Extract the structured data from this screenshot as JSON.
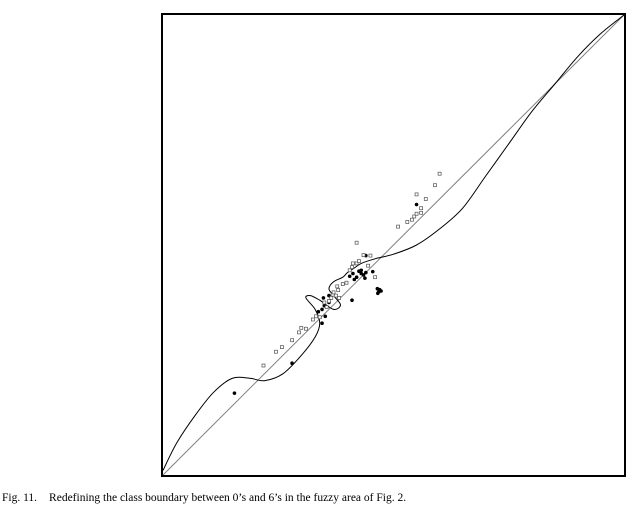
{
  "caption": {
    "label": "Fig. 11.",
    "text": "Redefining the class boundary between 0’s and 6’s in the fuzzy area of Fig. 2."
  },
  "chart_data": {
    "type": "scatter",
    "title": "",
    "xlabel": "",
    "ylabel": "",
    "xlim": [
      0,
      1
    ],
    "ylim": [
      0,
      1
    ],
    "grid": false,
    "legend": "none",
    "colors": {
      "frame": "#000000",
      "diagonal": "#808080",
      "boundary": "#000000",
      "filled_points": "#000000",
      "open_points": "#505050"
    },
    "series": [
      {
        "kind": "line",
        "values": [
          [
            0,
            0
          ],
          [
            1,
            1
          ]
        ]
      },
      {
        "kind": "curve",
        "values": [
          [
            0.0,
            0.01
          ],
          [
            0.03,
            0.07
          ],
          [
            0.07,
            0.13
          ],
          [
            0.11,
            0.18
          ],
          [
            0.15,
            0.21
          ],
          [
            0.19,
            0.21
          ],
          [
            0.22,
            0.205
          ],
          [
            0.26,
            0.22
          ],
          [
            0.3,
            0.26
          ],
          [
            0.33,
            0.3
          ],
          [
            0.34,
            0.33
          ],
          [
            0.33,
            0.36
          ],
          [
            0.31,
            0.385
          ],
          [
            0.32,
            0.39
          ],
          [
            0.34,
            0.38
          ],
          [
            0.37,
            0.36
          ],
          [
            0.385,
            0.37
          ],
          [
            0.37,
            0.39
          ],
          [
            0.36,
            0.405
          ],
          [
            0.37,
            0.42
          ],
          [
            0.39,
            0.43
          ],
          [
            0.4,
            0.44
          ],
          [
            0.415,
            0.45
          ],
          [
            0.43,
            0.46
          ],
          [
            0.46,
            0.47
          ],
          [
            0.5,
            0.48
          ],
          [
            0.55,
            0.5
          ],
          [
            0.6,
            0.535
          ],
          [
            0.65,
            0.58
          ],
          [
            0.7,
            0.65
          ],
          [
            0.75,
            0.72
          ],
          [
            0.8,
            0.79
          ],
          [
            0.85,
            0.85
          ],
          [
            0.9,
            0.91
          ],
          [
            0.95,
            0.96
          ],
          [
            1.0,
            1.0
          ]
        ]
      },
      {
        "kind": "filled",
        "values": [
          [
            0.155,
            0.178
          ],
          [
            0.28,
            0.243
          ],
          [
            0.345,
            0.33
          ],
          [
            0.352,
            0.345
          ],
          [
            0.337,
            0.355
          ],
          [
            0.345,
            0.36
          ],
          [
            0.35,
            0.368
          ],
          [
            0.36,
            0.375
          ],
          [
            0.36,
            0.39
          ],
          [
            0.348,
            0.385
          ],
          [
            0.41,
            0.38
          ],
          [
            0.415,
            0.425
          ],
          [
            0.405,
            0.432
          ],
          [
            0.412,
            0.438
          ],
          [
            0.42,
            0.43
          ],
          [
            0.43,
            0.438
          ],
          [
            0.435,
            0.435
          ],
          [
            0.44,
            0.44
          ],
          [
            0.438,
            0.428
          ],
          [
            0.43,
            0.445
          ],
          [
            0.425,
            0.443
          ],
          [
            0.455,
            0.442
          ],
          [
            0.465,
            0.405
          ],
          [
            0.468,
            0.398
          ],
          [
            0.466,
            0.395
          ],
          [
            0.47,
            0.403
          ],
          [
            0.473,
            0.4
          ],
          [
            0.44,
            0.477
          ],
          [
            0.55,
            0.588
          ]
        ]
      },
      {
        "kind": "open",
        "values": [
          [
            0.218,
            0.238
          ],
          [
            0.245,
            0.268
          ],
          [
            0.258,
            0.278
          ],
          [
            0.28,
            0.293
          ],
          [
            0.295,
            0.31
          ],
          [
            0.3,
            0.32
          ],
          [
            0.31,
            0.318
          ],
          [
            0.325,
            0.338
          ],
          [
            0.332,
            0.345
          ],
          [
            0.34,
            0.343
          ],
          [
            0.355,
            0.365
          ],
          [
            0.35,
            0.375
          ],
          [
            0.36,
            0.378
          ],
          [
            0.365,
            0.385
          ],
          [
            0.368,
            0.392
          ],
          [
            0.37,
            0.397
          ],
          [
            0.375,
            0.39
          ],
          [
            0.38,
            0.402
          ],
          [
            0.382,
            0.385
          ],
          [
            0.378,
            0.41
          ],
          [
            0.39,
            0.415
          ],
          [
            0.398,
            0.418
          ],
          [
            0.405,
            0.445
          ],
          [
            0.41,
            0.452
          ],
          [
            0.412,
            0.46
          ],
          [
            0.42,
            0.46
          ],
          [
            0.425,
            0.465
          ],
          [
            0.435,
            0.478
          ],
          [
            0.45,
            0.477
          ],
          [
            0.445,
            0.455
          ],
          [
            0.42,
            0.505
          ],
          [
            0.46,
            0.43
          ],
          [
            0.51,
            0.54
          ],
          [
            0.53,
            0.55
          ],
          [
            0.54,
            0.555
          ],
          [
            0.545,
            0.562
          ],
          [
            0.55,
            0.568
          ],
          [
            0.56,
            0.57
          ],
          [
            0.56,
            0.58
          ],
          [
            0.55,
            0.61
          ],
          [
            0.57,
            0.6
          ],
          [
            0.59,
            0.63
          ],
          [
            0.6,
            0.655
          ]
        ]
      }
    ]
  }
}
